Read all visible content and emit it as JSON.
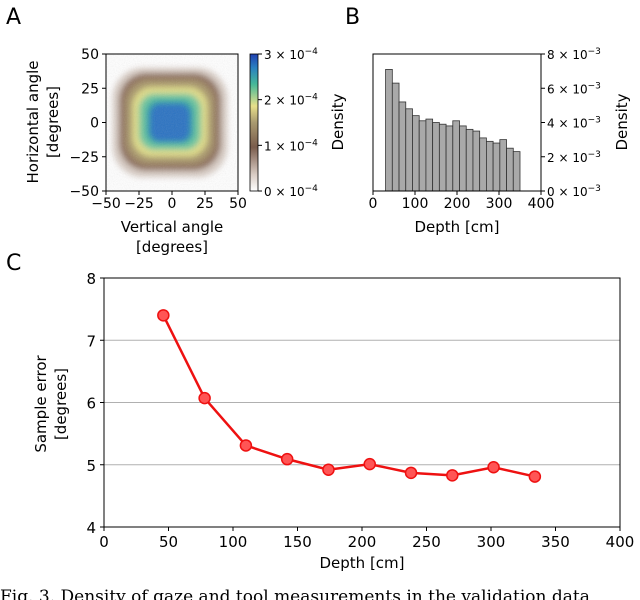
{
  "panels": [
    {
      "letter": "A",
      "xlabel": "Vertical angle",
      "xlabel_unit": "[degrees]",
      "ylabel": "Horizontal angle",
      "ylabel_unit": "[degrees]",
      "colorbar_label": "Density"
    },
    {
      "letter": "B",
      "xlabel": "Depth [cm]",
      "ylabel": "Density"
    },
    {
      "letter": "C",
      "xlabel": "Depth [cm]",
      "ylabel": "Sample error",
      "ylabel_unit": "[degrees]"
    }
  ],
  "chart_data": [
    {
      "panel": "A",
      "type": "heatmap",
      "xlim": [
        -50,
        50
      ],
      "ylim": [
        -50,
        50
      ],
      "x_ticks": [
        "−50",
        "−25",
        "0",
        "25",
        "50"
      ],
      "y_ticks": [
        "50",
        "25",
        "0",
        "−25",
        "−50"
      ],
      "xlabel": "Vertical angle [degrees]",
      "ylabel": "Horizontal angle [degrees]",
      "colorbar": {
        "label": "Density",
        "range": [
          0,
          0.0003
        ],
        "ticks": [
          "0 × 10−4",
          "1 × 10−4",
          "2 × 10−4",
          "3 × 10−4"
        ],
        "colors": [
          "#ffffff",
          "#7a5c4c",
          "#e8e08a",
          "#45b898",
          "#1f5fc0"
        ]
      },
      "contour_levels": [
        {
          "density": 2e-05,
          "extent": [
            [
              -45,
              42
            ],
            [
              -40,
              40
            ]
          ],
          "color": "#d8ccc4"
        },
        {
          "density": 6e-05,
          "extent": [
            [
              -40,
              37
            ],
            [
              -35,
              36
            ]
          ],
          "color": "#8e6f5c"
        },
        {
          "density": 0.00011,
          "extent": [
            [
              -35,
              32
            ],
            [
              -30,
              31
            ]
          ],
          "color": "#a8966a"
        },
        {
          "density": 0.00016,
          "extent": [
            [
              -30,
              27
            ],
            [
              -25,
              26
            ]
          ],
          "color": "#e0dd88"
        },
        {
          "density": 0.00021,
          "extent": [
            [
              -25,
              22
            ],
            [
              -20,
              21
            ]
          ],
          "color": "#6ec89e"
        },
        {
          "density": 0.00024,
          "extent": [
            [
              -20,
              17
            ],
            [
              -16,
              17
            ]
          ],
          "color": "#35a8a0"
        },
        {
          "density": 0.00028,
          "extent": [
            [
              -17,
              14
            ],
            [
              -14,
              14
            ]
          ],
          "color": "#2a72c2"
        }
      ]
    },
    {
      "panel": "B",
      "type": "bar",
      "xlim": [
        0,
        400
      ],
      "ylim": [
        0,
        0.008
      ],
      "x_ticks": [
        "0",
        "100",
        "200",
        "300",
        "400"
      ],
      "y_ticks": [
        "0 × 10−3",
        "2 × 10−3",
        "4 × 10−3",
        "6 × 10−3",
        "8 × 10−3"
      ],
      "y_tick_values": [
        0,
        0.002,
        0.004,
        0.006,
        0.008
      ],
      "xlabel": "Depth [cm]",
      "ylabel": "Density",
      "bin_start": 30,
      "bin_width": 16,
      "values": [
        0.0071,
        0.0063,
        0.0052,
        0.0048,
        0.0044,
        0.0041,
        0.0042,
        0.004,
        0.0039,
        0.0038,
        0.0041,
        0.0038,
        0.0036,
        0.0035,
        0.0031,
        0.0029,
        0.0028,
        0.003,
        0.0025,
        0.0023
      ]
    },
    {
      "panel": "C",
      "type": "line",
      "xlim": [
        0,
        400
      ],
      "ylim": [
        4,
        8
      ],
      "x_ticks": [
        "0",
        "50",
        "100",
        "150",
        "200",
        "250",
        "300",
        "350",
        "400"
      ],
      "x_tick_values": [
        0,
        50,
        100,
        150,
        200,
        250,
        300,
        350,
        400
      ],
      "y_ticks": [
        "4",
        "5",
        "6",
        "7",
        "8"
      ],
      "y_tick_values": [
        4,
        5,
        6,
        7,
        8
      ],
      "grid": "horizontal",
      "xlabel": "Depth [cm]",
      "ylabel": "Sample error [degrees]",
      "color": "#ee1111",
      "x": [
        46,
        78,
        110,
        142,
        174,
        206,
        238,
        270,
        302,
        334
      ],
      "y": [
        7.4,
        6.07,
        5.31,
        5.09,
        4.92,
        5.01,
        4.87,
        4.83,
        4.96,
        4.81
      ]
    }
  ],
  "caption": "Fig. 3.  Density of gaze and tool measurements in the validation data"
}
